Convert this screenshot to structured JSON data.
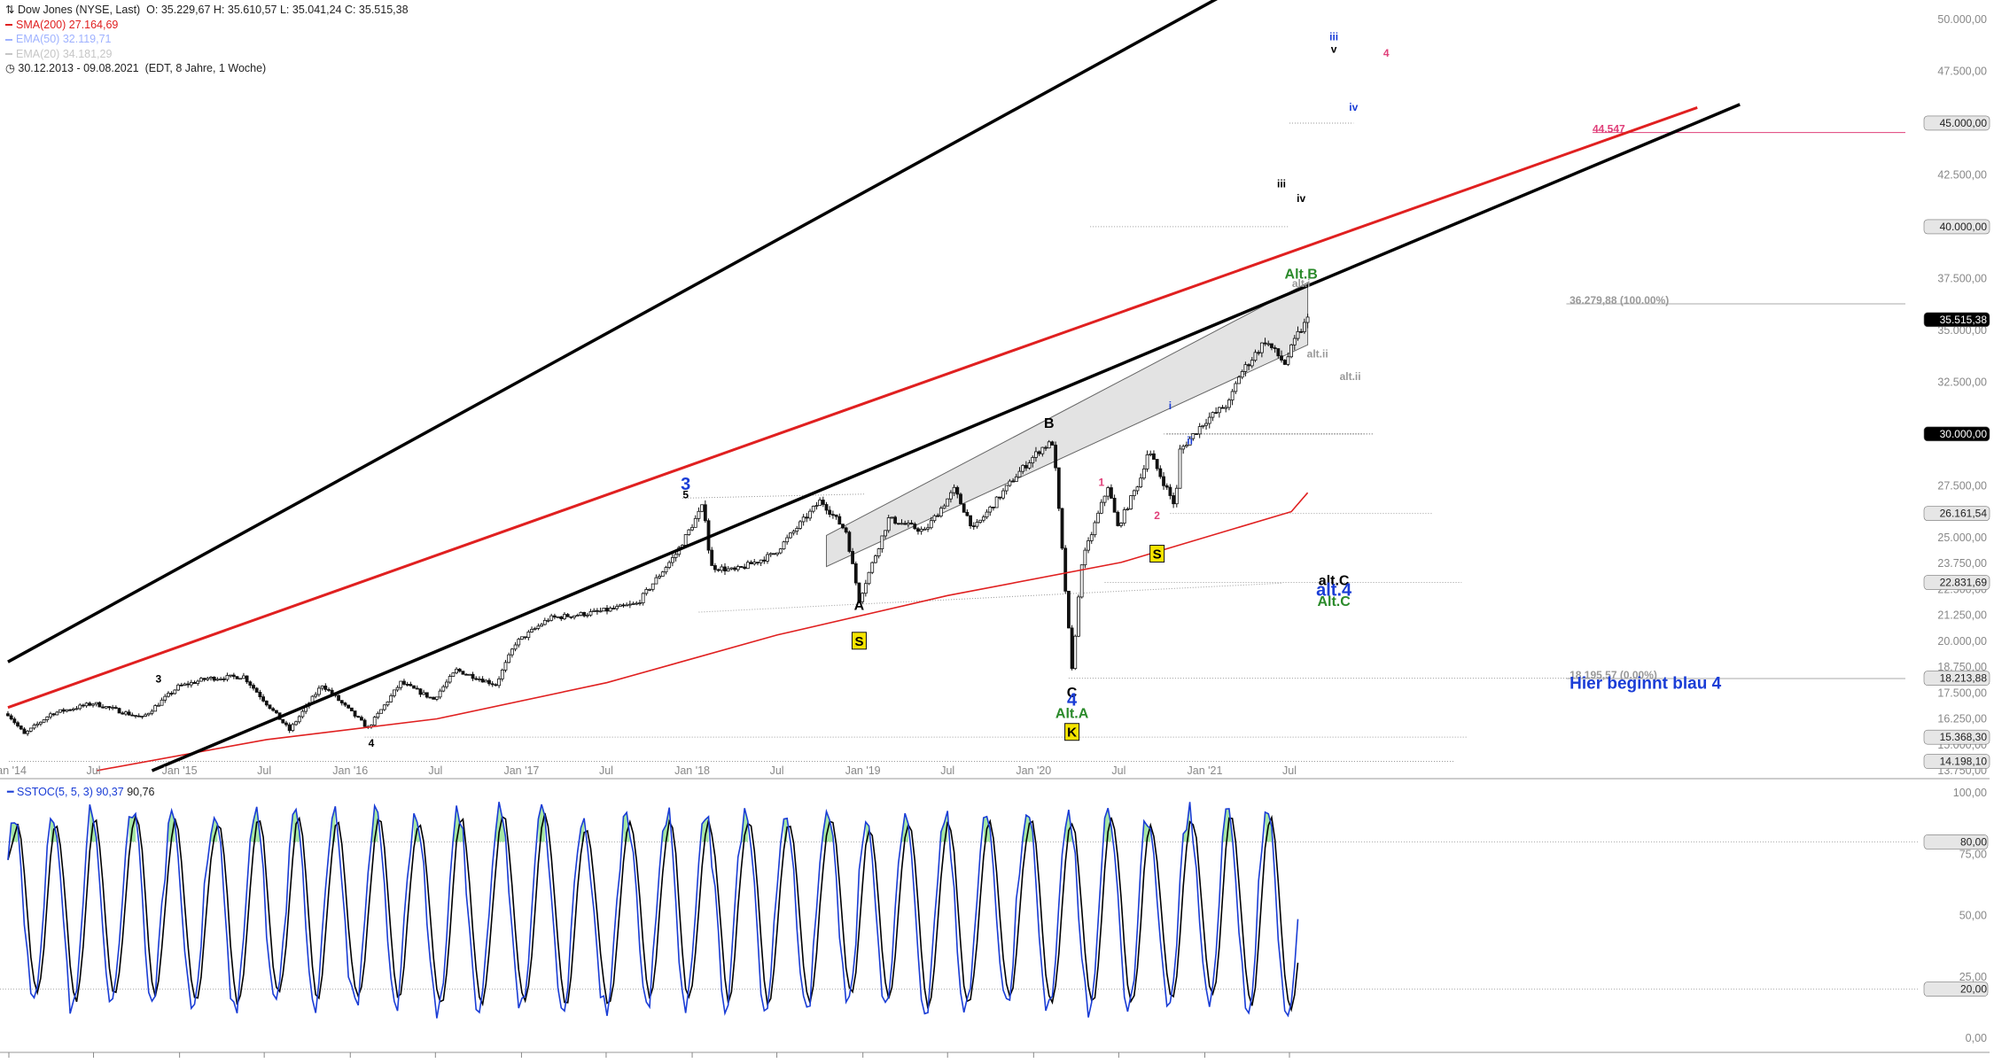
{
  "legend": {
    "title": "Dow Jones (NYSE, Last)",
    "ohlc": "O: 35.229,67  H: 35.610,57  L: 35.041,24  C: 35.515,38",
    "sma200": {
      "label": "SMA(200)",
      "value": "27.164,69",
      "color": "#e02020"
    },
    "ema50": {
      "label": "EMA(50)",
      "value": "32.119,71",
      "color": "#9fb2ff"
    },
    "ema20": {
      "label": "EMA(20)",
      "value": "34.181,29",
      "color": "#c6c6c6"
    },
    "range": "30.12.2013 - 09.08.2021",
    "range_note": "(EDT, 8 Jahre, 1 Woche)"
  },
  "osc_legend": {
    "name": "SSTOC(5, 5, 3)",
    "v1": "90,37",
    "v2": "90,76"
  },
  "chart_data": [
    {
      "type": "candlestick",
      "title": "Dow Jones (NYSE, Last)",
      "x_tick_labels": [
        "Jan '14",
        "Jul",
        "Jan '15",
        "Jul",
        "Jan '16",
        "Jul",
        "Jan '17",
        "Jul",
        "Jan '18",
        "Jul",
        "Jan '19",
        "Jul",
        "Jan '20",
        "Jul",
        "Jan '21",
        "Jul"
      ],
      "x_tick_dates": [
        "2014-01",
        "2014-07",
        "2015-01",
        "2015-07",
        "2016-01",
        "2016-07",
        "2017-01",
        "2017-07",
        "2018-01",
        "2018-07",
        "2019-01",
        "2019-07",
        "2020-01",
        "2020-07",
        "2021-01",
        "2021-07"
      ],
      "x_range": [
        "2013-12-30",
        "2021-08-09"
      ],
      "y_axis": "right",
      "y_range": [
        13750,
        51250
      ],
      "y_ticks": [
        "50.000,00",
        "47.500,00",
        "45.000,00",
        "42.500,00",
        "40.000,00",
        "37.500,00",
        "35.000,00",
        "32.500,00",
        "30.000,00",
        "27.500,00",
        "25.000,00",
        "23.750,00",
        "22.500,00",
        "21.250,00",
        "20.000,00",
        "18.750,00",
        "17.500,00",
        "16.250,00",
        "15.000,00",
        "13.750,00"
      ],
      "y_tick_values": [
        50000,
        47500,
        45000,
        42500,
        40000,
        37500,
        35000,
        32500,
        30000,
        27500,
        25000,
        23750,
        22500,
        21250,
        20000,
        18750,
        17500,
        16250,
        15000,
        13750
      ],
      "price_tags": [
        {
          "label": "47.500,00",
          "value": 47500,
          "style": "plain"
        },
        {
          "label": "45.000,00",
          "value": 45000,
          "style": "grey"
        },
        {
          "label": "40.000,00",
          "value": 40000,
          "style": "grey"
        },
        {
          "label": "35.515,38",
          "value": 35515.38,
          "style": "black"
        },
        {
          "label": "30.000,00",
          "value": 30000,
          "style": "black"
        },
        {
          "label": "26.161,54",
          "value": 26161.54,
          "style": "grey"
        },
        {
          "label": "22.831,69",
          "value": 22831.69,
          "style": "grey"
        },
        {
          "label": "18.213,88",
          "value": 18213.88,
          "style": "grey"
        },
        {
          "label": "15.368,30",
          "value": 15368.3,
          "style": "grey"
        },
        {
          "label": "14.198,10",
          "value": 14198.1,
          "style": "grey"
        }
      ],
      "series": [
        {
          "name": "Dow Jones (NYSE, Last)",
          "kind": "price",
          "x": [
            "2013-12-30",
            "2014-02-03",
            "2014-04-01",
            "2014-07-01",
            "2014-10-13",
            "2014-12-29",
            "2015-03-02",
            "2015-05-18",
            "2015-08-24",
            "2015-11-02",
            "2016-02-08",
            "2016-04-18",
            "2016-06-27",
            "2016-08-15",
            "2016-11-07",
            "2016-12-19",
            "2017-03-01",
            "2017-06-12",
            "2017-09-05",
            "2017-11-27",
            "2018-01-26",
            "2018-02-09",
            "2018-04-02",
            "2018-06-25",
            "2018-10-03",
            "2018-11-26",
            "2018-12-24",
            "2019-02-25",
            "2019-05-13",
            "2019-07-15",
            "2019-08-26",
            "2019-11-25",
            "2020-01-17",
            "2020-02-12",
            "2020-03-23",
            "2020-04-13",
            "2020-06-08",
            "2020-06-29",
            "2020-08-17",
            "2020-09-02",
            "2020-10-30",
            "2020-11-09",
            "2020-12-31",
            "2021-02-22",
            "2021-03-15",
            "2021-05-10",
            "2021-06-21",
            "2021-07-19",
            "2021-08-09"
          ],
          "y": [
            16500,
            15500,
            16500,
            17000,
            16300,
            17800,
            18200,
            18300,
            15700,
            17900,
            15800,
            18000,
            17200,
            18600,
            17900,
            19900,
            21100,
            21400,
            21800,
            24200,
            26600,
            23600,
            23400,
            24200,
            26800,
            25300,
            22000,
            25900,
            25300,
            27300,
            25400,
            28000,
            29300,
            29600,
            18600,
            23800,
            27500,
            25500,
            27900,
            29200,
            26500,
            29200,
            30600,
            31500,
            32800,
            34500,
            33400,
            34800,
            35515.38
          ]
        },
        {
          "name": "SMA(200)",
          "kind": "sma",
          "x": [
            "2014-07-07",
            "2015-07-06",
            "2016-07-04",
            "2017-07-03",
            "2018-07-02",
            "2019-07-01",
            "2020-07-06",
            "2021-07-05",
            "2021-08-09"
          ],
          "y": [
            13750,
            15250,
            16250,
            18000,
            20300,
            22200,
            23800,
            26250,
            27164.69
          ]
        }
      ],
      "trendlines": [
        {
          "name": "upper channel",
          "color": "black",
          "from": [
            "2013-12-30",
            19000
          ],
          "to": [
            "2021-03-08",
            51500
          ]
        },
        {
          "name": "lower channel",
          "color": "black",
          "from": [
            "2014-11-03",
            13750
          ],
          "to": [
            "2024-02-19",
            45900
          ]
        },
        {
          "name": "red trendline",
          "color": "red",
          "from": [
            "2013-12-30",
            16800
          ],
          "to": [
            "2023-11-20",
            45750
          ]
        }
      ],
      "annotations": [
        {
          "text": "3",
          "color": "black",
          "x": "2014-11-17",
          "y": 18000
        },
        {
          "text": "4",
          "color": "black",
          "x": "2016-02-15",
          "y": 14900
        },
        {
          "text": "3",
          "color": "blue",
          "x": "2017-12-18",
          "y": 27300
        },
        {
          "text": "5",
          "color": "black",
          "x": "2017-12-18",
          "y": 26900
        },
        {
          "text": "A",
          "color": "black",
          "x": "2018-12-24",
          "y": 21500
        },
        {
          "text": "S",
          "color": "box",
          "x": "2018-12-24",
          "y": 20000
        },
        {
          "text": "B",
          "color": "black",
          "x": "2020-02-03",
          "y": 30300
        },
        {
          "text": "C",
          "color": "black",
          "x": "2020-03-23",
          "y": 17300
        },
        {
          "text": "4",
          "color": "blue",
          "x": "2020-03-23",
          "y": 16900
        },
        {
          "text": "Alt.A",
          "color": "green",
          "x": "2020-03-23",
          "y": 16300
        },
        {
          "text": "K",
          "color": "box",
          "x": "2020-03-23",
          "y": 15600
        },
        {
          "text": "1",
          "color": "pink",
          "x": "2020-05-25",
          "y": 27500
        },
        {
          "text": "2",
          "color": "pink",
          "x": "2020-09-21",
          "y": 25900
        },
        {
          "text": "S",
          "color": "box",
          "x": "2020-09-21",
          "y": 24200
        },
        {
          "text": "i",
          "color": "blue",
          "x": "2020-10-19",
          "y": 31200
        },
        {
          "text": "ii",
          "color": "blue",
          "x": "2020-11-30",
          "y": 29500
        },
        {
          "text": "alt.C",
          "color": "black",
          "x": "2021-10-04",
          "y": 22700
        },
        {
          "text": "alt.4",
          "color": "blue",
          "x": "2021-10-04",
          "y": 22200
        },
        {
          "text": "Alt.C",
          "color": "green",
          "x": "2021-10-04",
          "y": 21700
        },
        {
          "text": "Alt.B",
          "color": "green",
          "x": "2021-07-26",
          "y": 37500
        },
        {
          "text": "alt.i",
          "color": "gray",
          "x": "2021-07-26",
          "y": 37100
        },
        {
          "text": "alt.ii",
          "color": "gray",
          "x": "2021-08-30",
          "y": 33700
        },
        {
          "text": "alt.ii",
          "color": "gray",
          "x": "2021-11-08",
          "y": 32600
        },
        {
          "text": "iii",
          "color": "black",
          "x": "2021-06-14",
          "y": 41900
        },
        {
          "text": "iv",
          "color": "black",
          "x": "2021-07-26",
          "y": 41200
        },
        {
          "text": "iii",
          "color": "blue",
          "x": "2021-10-04",
          "y": 49000
        },
        {
          "text": "v",
          "color": "black",
          "x": "2021-10-04",
          "y": 48400
        },
        {
          "text": "iv",
          "color": "blue",
          "x": "2021-11-15",
          "y": 45600
        },
        {
          "text": "4",
          "color": "pink",
          "x": "2022-01-24",
          "y": 48200
        },
        {
          "text": "44.547",
          "color": "pink",
          "x": "2023-04-10",
          "y": 44547
        },
        {
          "text": "36.279,88 (100.00%)",
          "color": "gray",
          "x": "2023-02-20",
          "y": 36279.88
        },
        {
          "text": "18.195,57 (0.00%)",
          "color": "gray",
          "x": "2023-02-20",
          "y": 18195.57
        },
        {
          "text": "Hier beginnt blau 4",
          "color": "blue",
          "x": "2023-02-20",
          "y": 17700
        }
      ]
    },
    {
      "type": "line",
      "title": "SSTOC(5, 5, 3)",
      "y_range": [
        0,
        100
      ],
      "y_ticks": [
        "100,00",
        "75,00",
        "50,00",
        "25,00",
        "0,00"
      ],
      "y_tick_values": [
        100,
        75,
        50,
        25,
        0
      ],
      "levels": [
        {
          "label": "80,00",
          "value": 80
        },
        {
          "label": "20,00",
          "value": 20
        }
      ],
      "series": [
        {
          "name": "SSTOC %K",
          "value": "90,37",
          "color": "#1a3dd6"
        },
        {
          "name": "SSTOC %D",
          "value": "90,76",
          "color": "#000000"
        }
      ]
    }
  ]
}
